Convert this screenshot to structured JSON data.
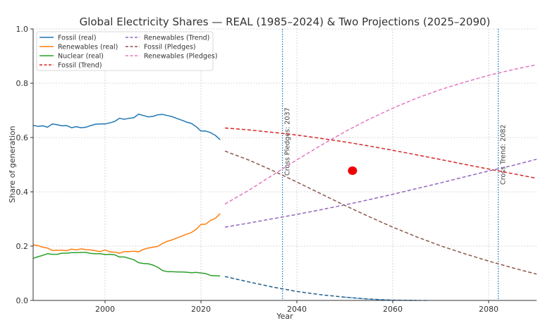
{
  "chart_data": {
    "type": "line",
    "title": "Global Electricity Shares — REAL (1985–2024) & Two Projections (2025–2090)",
    "xlabel": "Year",
    "ylabel": "Share of generation",
    "xlim": [
      1985,
      2090
    ],
    "ylim": [
      0.0,
      1.0
    ],
    "grid": true,
    "legend_position": "top-left",
    "x_ticks": [
      2000,
      2020,
      2040,
      2060,
      2080
    ],
    "x_tick_labels": [
      "2000",
      "2020",
      "2040",
      "2060",
      "2080"
    ],
    "y_ticks": [
      0.0,
      0.2,
      0.4,
      0.6,
      0.8,
      1.0
    ],
    "y_tick_labels": [
      "0.0",
      "0.2",
      "0.4",
      "0.6",
      "0.8",
      "1.0"
    ],
    "real_years": [
      1985,
      1986,
      1987,
      1988,
      1989,
      1990,
      1991,
      1992,
      1993,
      1994,
      1995,
      1996,
      1997,
      1998,
      1999,
      2000,
      2001,
      2002,
      2003,
      2004,
      2005,
      2006,
      2007,
      2008,
      2009,
      2010,
      2011,
      2012,
      2013,
      2014,
      2015,
      2016,
      2017,
      2018,
      2019,
      2020,
      2021,
      2022,
      2023,
      2024
    ],
    "projection_years": [
      2025,
      2030,
      2035,
      2040,
      2045,
      2050,
      2055,
      2060,
      2065,
      2070,
      2075,
      2080,
      2085,
      2090
    ],
    "series": [
      {
        "name": "Fossil (real)",
        "color": "#1f77b4",
        "style": "solid",
        "x_ref": "real_years",
        "values": [
          0.645,
          0.641,
          0.643,
          0.638,
          0.65,
          0.647,
          0.643,
          0.644,
          0.636,
          0.64,
          0.636,
          0.638,
          0.644,
          0.649,
          0.65,
          0.65,
          0.654,
          0.659,
          0.671,
          0.667,
          0.671,
          0.673,
          0.686,
          0.681,
          0.676,
          0.678,
          0.684,
          0.685,
          0.681,
          0.677,
          0.67,
          0.664,
          0.657,
          0.652,
          0.64,
          0.624,
          0.624,
          0.618,
          0.608,
          0.592
        ]
      },
      {
        "name": "Renewables (real)",
        "color": "#ff7f0e",
        "style": "solid",
        "x_ref": "real_years",
        "values": [
          0.205,
          0.202,
          0.196,
          0.193,
          0.184,
          0.185,
          0.185,
          0.183,
          0.189,
          0.186,
          0.19,
          0.187,
          0.186,
          0.183,
          0.18,
          0.186,
          0.179,
          0.178,
          0.174,
          0.18,
          0.18,
          0.181,
          0.179,
          0.188,
          0.193,
          0.196,
          0.199,
          0.21,
          0.218,
          0.223,
          0.23,
          0.237,
          0.244,
          0.25,
          0.262,
          0.28,
          0.281,
          0.295,
          0.302,
          0.32
        ]
      },
      {
        "name": "Nuclear (real)",
        "color": "#2ca02c",
        "style": "solid",
        "x_ref": "real_years",
        "values": [
          0.155,
          0.161,
          0.166,
          0.172,
          0.17,
          0.17,
          0.174,
          0.174,
          0.176,
          0.176,
          0.177,
          0.177,
          0.173,
          0.172,
          0.172,
          0.169,
          0.17,
          0.168,
          0.16,
          0.16,
          0.155,
          0.15,
          0.139,
          0.136,
          0.135,
          0.13,
          0.122,
          0.11,
          0.106,
          0.106,
          0.105,
          0.105,
          0.104,
          0.102,
          0.103,
          0.101,
          0.099,
          0.092,
          0.091,
          0.09
        ]
      },
      {
        "name": "Fossil (Trend)",
        "color": "#d62728",
        "style": "dashed",
        "x_ref": "projection_years",
        "values": [
          0.635,
          0.628,
          0.619,
          0.609,
          0.597,
          0.584,
          0.569,
          0.553,
          0.536,
          0.519,
          0.501,
          0.484,
          0.467,
          0.45
        ]
      },
      {
        "name": "Renewables (Trend)",
        "color": "#9467bd",
        "style": "dashed",
        "x_ref": "projection_years",
        "values": [
          0.27,
          0.285,
          0.301,
          0.317,
          0.334,
          0.352,
          0.371,
          0.391,
          0.412,
          0.433,
          0.455,
          0.477,
          0.497,
          0.52
        ]
      },
      {
        "name": "Fossil (Pledges)",
        "color": "#8c564b",
        "style": "dashed",
        "x_ref": "projection_years",
        "values": [
          0.55,
          0.517,
          0.478,
          0.436,
          0.393,
          0.35,
          0.309,
          0.27,
          0.234,
          0.201,
          0.172,
          0.145,
          0.12,
          0.097
        ]
      },
      {
        "name": "Renewables (Pledges)",
        "color": "#e377c2",
        "style": "dashed",
        "x_ref": "projection_years",
        "values": [
          0.355,
          0.406,
          0.462,
          0.518,
          0.571,
          0.621,
          0.667,
          0.708,
          0.745,
          0.777,
          0.804,
          0.829,
          0.85,
          0.868
        ]
      },
      {
        "name": "Nuclear (projection)",
        "color": "#1f5f8b",
        "style": "dashed",
        "legend": false,
        "x_ref": "projection_years",
        "values": [
          0.088,
          0.068,
          0.049,
          0.033,
          0.021,
          0.012,
          0.005,
          0.001,
          0.0,
          null,
          null,
          null,
          null,
          null
        ]
      }
    ],
    "vertical_lines": [
      {
        "x": 2037,
        "label": "Cross Pledges: 2037",
        "color": "#1f77b4"
      },
      {
        "x": 2082,
        "label": "Cross Trend: 2082",
        "color": "#1f77b4"
      }
    ],
    "markers": [
      {
        "x": 2051.6,
        "y": 0.478,
        "color": "#ee0000"
      }
    ]
  }
}
